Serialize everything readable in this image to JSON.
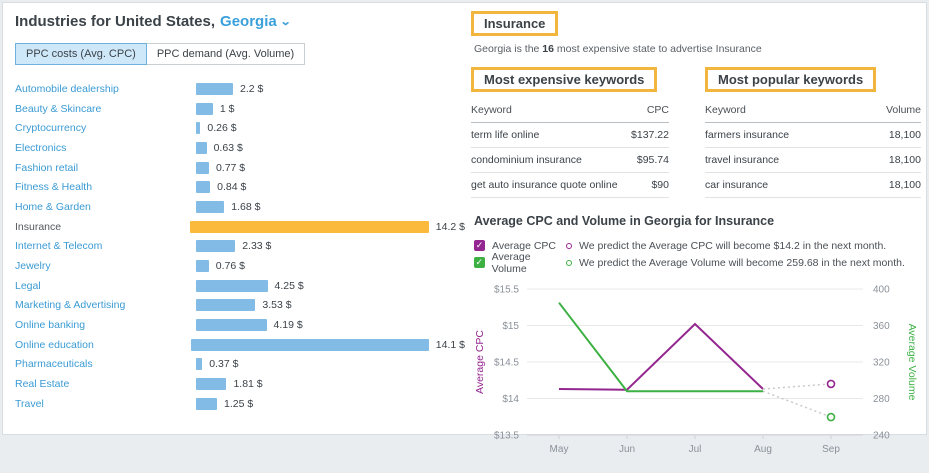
{
  "header": {
    "title_prefix": "Industries for United States,",
    "location": "Georgia"
  },
  "tabs": [
    {
      "label": "PPC costs (Avg. CPC)",
      "active": true
    },
    {
      "label": "PPC demand (Avg. Volume)",
      "active": false
    }
  ],
  "insurance": {
    "heading": "Insurance",
    "subtitle_prefix": "Georgia is the ",
    "subtitle_rank": "16",
    "subtitle_suffix": " most expensive state to advertise Insurance",
    "expensive": {
      "heading": "Most expensive keywords",
      "columns": [
        "Keyword",
        "CPC"
      ],
      "rows": [
        [
          "term life online",
          "$137.22"
        ],
        [
          "condominium insurance",
          "$95.74"
        ],
        [
          "get auto insurance quote online",
          "$90"
        ]
      ]
    },
    "popular": {
      "heading": "Most popular keywords",
      "columns": [
        "Keyword",
        "Volume"
      ],
      "rows": [
        [
          "farmers insurance",
          "18,100"
        ],
        [
          "travel insurance",
          "18,100"
        ],
        [
          "car insurance",
          "18,100"
        ]
      ]
    },
    "legend": [
      {
        "label": "Average CPC",
        "color": "#93268f",
        "prediction": "We predict the Average CPC will become $14.2 in the next month."
      },
      {
        "label": "Average Volume",
        "color": "#3cb043",
        "prediction": "We predict the Average Volume will become 259.68 in the next month."
      }
    ]
  },
  "chart_data": [
    {
      "type": "bar",
      "title": "Industries for United States, Georgia — PPC costs (Avg. CPC)",
      "categories": [
        "Automobile dealership",
        "Beauty & Skincare",
        "Cryptocurrency",
        "Electronics",
        "Fashion retail",
        "Fitness & Health",
        "Home & Garden",
        "Insurance",
        "Internet & Telecom",
        "Jewelry",
        "Legal",
        "Marketing & Advertising",
        "Online banking",
        "Online education",
        "Pharmaceuticals",
        "Real Estate",
        "Travel"
      ],
      "values": [
        2.2,
        1,
        0.26,
        0.63,
        0.77,
        0.84,
        1.68,
        14.2,
        2.33,
        0.76,
        4.25,
        3.53,
        4.19,
        14.1,
        0.37,
        1.81,
        1.25
      ],
      "value_labels": [
        "2.2 $",
        "1 $",
        "0.26 $",
        "0.63 $",
        "0.77 $",
        "0.84 $",
        "1.68 $",
        "14.2 $",
        "2.33 $",
        "0.76 $",
        "4.25 $",
        "3.53 $",
        "4.19 $",
        "14.1 $",
        "0.37 $",
        "1.81 $",
        "1.25 $"
      ],
      "xlim": [
        0,
        14.2
      ],
      "highlight_category": "Insurance",
      "bar_color": "#82bce6",
      "highlight_color": "#fbba3c"
    },
    {
      "type": "line",
      "title": "Average CPC and Volume in Georgia for Insurance",
      "x": [
        "May",
        "Jun",
        "Jul",
        "Aug",
        "Sep"
      ],
      "series": [
        {
          "name": "Average CPC",
          "axis": "left",
          "color": "#93268f",
          "values": [
            14.13,
            14.12,
            15.02,
            14.13
          ],
          "predicted_value": 14.2
        },
        {
          "name": "Average Volume",
          "axis": "right",
          "color": "#3cb043",
          "values": [
            385,
            288,
            288,
            288
          ],
          "predicted_value": 259.68
        }
      ],
      "left_axis": {
        "label": "Average CPC",
        "tick_labels": [
          "$15.5",
          "$15",
          "$14.5",
          "$14",
          "$13.5"
        ],
        "range": [
          13.5,
          15.5
        ]
      },
      "right_axis": {
        "label": "Average Volume",
        "tick_labels": [
          "400",
          "360",
          "320",
          "280",
          "240"
        ],
        "range": [
          240,
          400
        ]
      },
      "prediction_line_color": "#c9c9c9",
      "grid_color": "#e8e8e8"
    }
  ]
}
